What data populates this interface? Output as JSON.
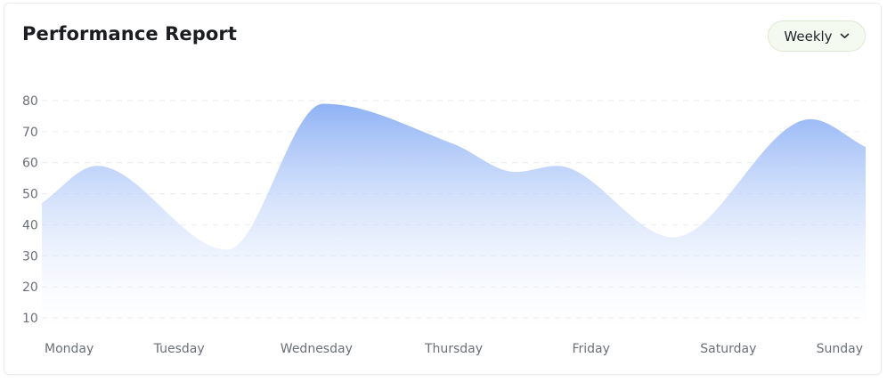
{
  "card": {
    "title": "Performance Report"
  },
  "period_select": {
    "selected": "Weekly",
    "icon": "chevron-down-icon"
  },
  "chart_data": {
    "type": "area",
    "title": "Performance Report",
    "categories": [
      "Monday",
      "Tuesday",
      "Wednesday",
      "Thursday",
      "Friday",
      "Saturday",
      "Sunday"
    ],
    "y_ticks": [
      "80",
      "70",
      "60",
      "50",
      "40",
      "30",
      "20",
      "10"
    ],
    "ylim": [
      10,
      80
    ],
    "grid": true,
    "legend": "none",
    "series": [
      {
        "x": [
          0,
          0.4,
          1.35,
          2.05,
          3.0,
          3.45,
          3.75,
          4.6,
          5.6,
          6.0
        ],
        "values": [
          47,
          59,
          32,
          79,
          66,
          57,
          59,
          36,
          74,
          65
        ]
      }
    ],
    "colors": {
      "area_top": "#8fb2f5",
      "area_bottom": "#ffffff",
      "grid": "#e8ebf0",
      "tick_text": "#6b6f76"
    }
  }
}
